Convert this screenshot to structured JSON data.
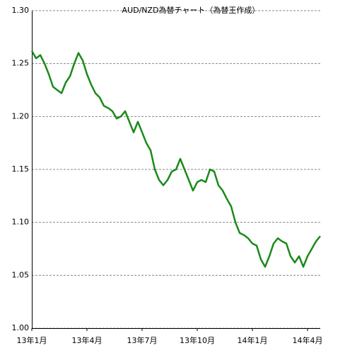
{
  "chart_data": {
    "type": "line",
    "title": "AUD/NZD為替チャート（為替王作成）",
    "categories": [
      "13年1月",
      null,
      null,
      null,
      null,
      null,
      null,
      null,
      null,
      null,
      null,
      null,
      null,
      "13年4月",
      null,
      null,
      null,
      null,
      null,
      null,
      null,
      null,
      null,
      null,
      null,
      null,
      "13年7月",
      null,
      null,
      null,
      null,
      null,
      null,
      null,
      null,
      null,
      null,
      null,
      null,
      "13年10月",
      null,
      null,
      null,
      null,
      null,
      null,
      null,
      null,
      null,
      null,
      null,
      null,
      "14年1月",
      null,
      null,
      null,
      null,
      null,
      null,
      null,
      null,
      null,
      null,
      null,
      null,
      "14年4月",
      null,
      null,
      null
    ],
    "series": [
      {
        "name": "AUD/NZD",
        "color": "#1a8a1a",
        "values": [
          1.262,
          1.255,
          1.258,
          1.25,
          1.24,
          1.228,
          1.225,
          1.222,
          1.232,
          1.238,
          1.25,
          1.26,
          1.253,
          1.24,
          1.23,
          1.222,
          1.218,
          1.21,
          1.208,
          1.205,
          1.198,
          1.2,
          1.205,
          1.195,
          1.185,
          1.195,
          1.185,
          1.175,
          1.168,
          1.15,
          1.14,
          1.135,
          1.14,
          1.148,
          1.15,
          1.16,
          1.15,
          1.14,
          1.13,
          1.138,
          1.14,
          1.138,
          1.15,
          1.148,
          1.135,
          1.13,
          1.122,
          1.115,
          1.1,
          1.09,
          1.088,
          1.085,
          1.08,
          1.078,
          1.065,
          1.058,
          1.068,
          1.08,
          1.085,
          1.082,
          1.08,
          1.068,
          1.062,
          1.068,
          1.058,
          1.068,
          1.075,
          1.082,
          1.087
        ]
      }
    ],
    "ylim": [
      1.0,
      1.3
    ],
    "yticks": [
      {
        "value": 1.0,
        "label": "1.00"
      },
      1.05,
      {
        "value": 1.1,
        "label": "1.10"
      },
      1.15,
      {
        "value": 1.2,
        "label": "1.20"
      },
      1.25,
      {
        "value": 1.3,
        "label": "1.30"
      }
    ],
    "grid": true
  }
}
